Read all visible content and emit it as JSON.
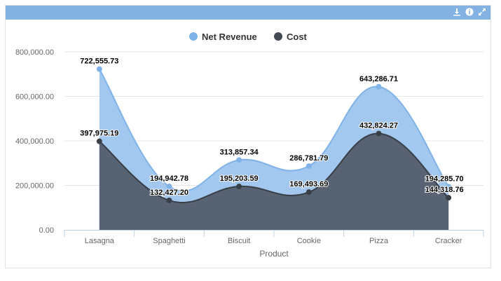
{
  "panel": {
    "icons": [
      "download-icon",
      "info-icon",
      "expand-icon"
    ],
    "header_color": "#84b2e2"
  },
  "chart_data": {
    "type": "area",
    "xlabel": "Product",
    "ylabel": "",
    "ylim": [
      0,
      800000
    ],
    "yticks": [
      "0.00",
      "200,000.00",
      "400,000.00",
      "600,000.00",
      "800,000.00"
    ],
    "grid": true,
    "legend_position": "top-center",
    "categories": [
      "Lasagna",
      "Spaghetti",
      "Biscuit",
      "Cookie",
      "Pizza",
      "Cracker"
    ],
    "series": [
      {
        "name": "Net Revenue",
        "color": "#7fb3e8",
        "values": [
          722555.73,
          194942.78,
          313857.34,
          286781.79,
          643286.71,
          194285.7
        ],
        "labels": [
          "722,555.73",
          "194,942.78",
          "313,857.34",
          "286,781.79",
          "643,286.71",
          "194,285.70"
        ]
      },
      {
        "name": "Cost",
        "color": "#434a54",
        "values": [
          397975.19,
          132427.2,
          195203.59,
          169493.69,
          432824.27,
          144318.76
        ],
        "labels": [
          "397,975.19",
          "132,427.20",
          "195,203.59",
          "169,493.69",
          "432,824.27",
          "144,318.76"
        ]
      }
    ]
  }
}
